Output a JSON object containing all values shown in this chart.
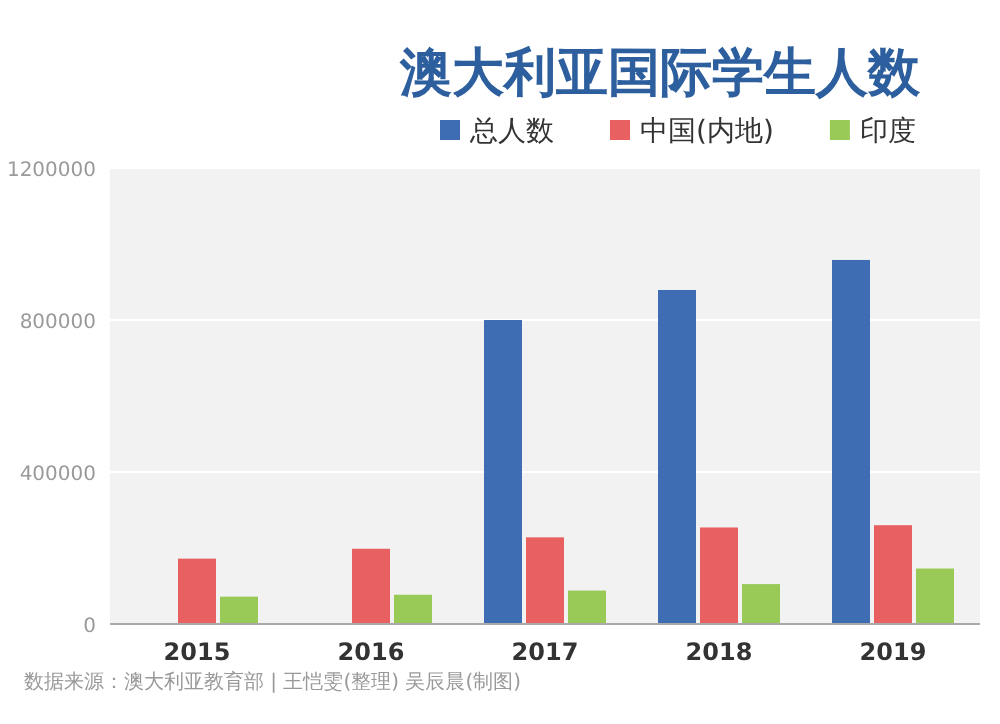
{
  "chart_data": {
    "type": "bar",
    "title": "澳大利亚国际学生人数",
    "categories": [
      "2015",
      "2016",
      "2017",
      "2018",
      "2019"
    ],
    "series": [
      {
        "name": "总人数",
        "color": "#3f6db3",
        "values": [
          null,
          null,
          800000,
          879000,
          958000
        ]
      },
      {
        "name": "中国(内地)",
        "color": "#e8605f",
        "values": [
          172000,
          198000,
          228000,
          254000,
          260000
        ]
      },
      {
        "name": "印度",
        "color": "#99c957",
        "values": [
          72000,
          77000,
          88000,
          105000,
          146000
        ]
      }
    ],
    "ylim": [
      0,
      1200000
    ],
    "yticks": [
      0,
      400000,
      800000,
      1200000
    ],
    "grid": "y",
    "legend": "top right",
    "annotations": [
      "数据来源：澳大利亚教育部 | 王恺雯(整理) 吴辰晨(制图)"
    ]
  }
}
